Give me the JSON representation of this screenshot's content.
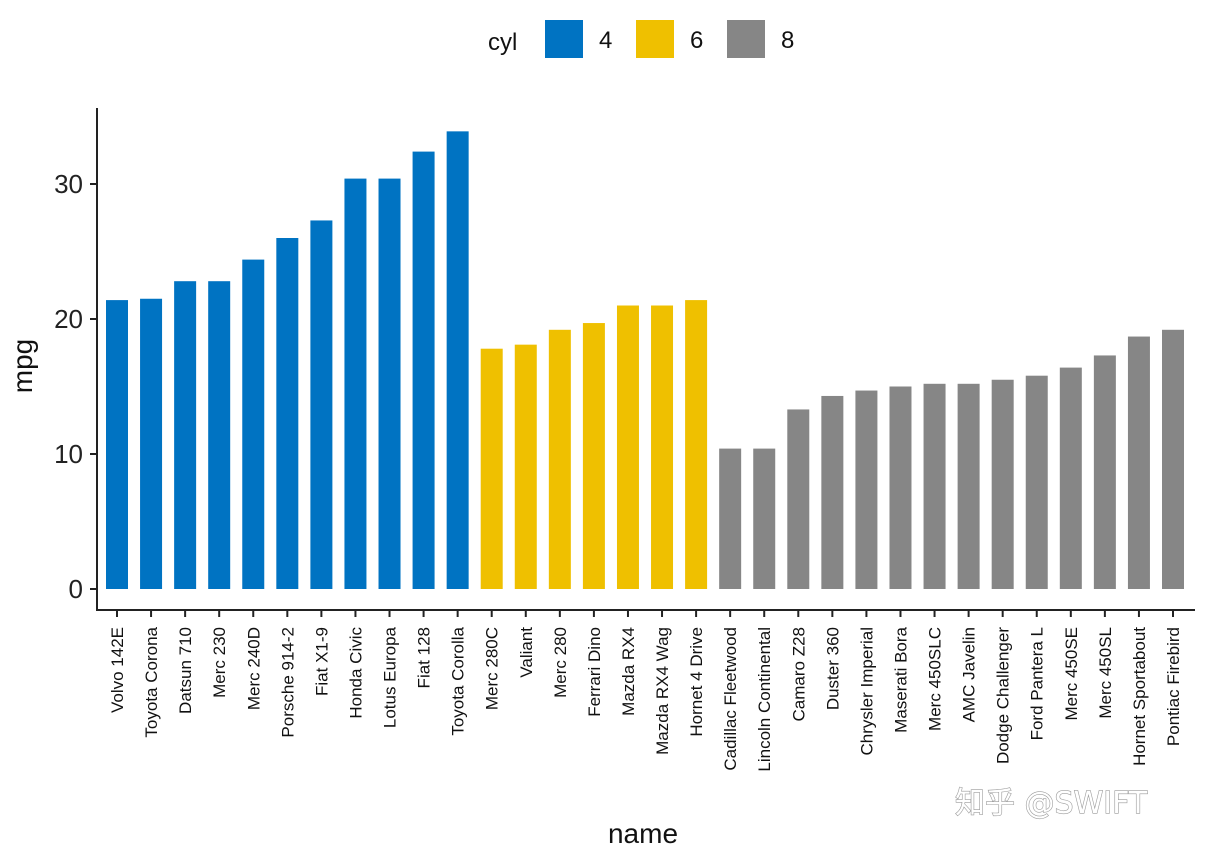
{
  "chart_data": {
    "type": "bar",
    "xlabel": "name",
    "ylabel": "mpg",
    "ylim": [
      0,
      35
    ],
    "yticks": [
      0,
      10,
      20,
      30
    ],
    "grid": false,
    "legend": {
      "title": "cyl",
      "position": "top",
      "entries": [
        {
          "label": "4",
          "color": "#0073C2"
        },
        {
          "label": "6",
          "color": "#EFC000"
        },
        {
          "label": "8",
          "color": "#868686"
        }
      ]
    },
    "categories": [
      "Volvo 142E",
      "Toyota Corona",
      "Datsun 710",
      "Merc 230",
      "Merc 240D",
      "Porsche 914-2",
      "Fiat X1-9",
      "Honda Civic",
      "Lotus Europa",
      "Fiat 128",
      "Toyota Corolla",
      "Merc 280C",
      "Valiant",
      "Merc 280",
      "Ferrari Dino",
      "Mazda RX4",
      "Mazda RX4 Wag",
      "Hornet 4 Drive",
      "Cadillac Fleetwood",
      "Lincoln Continental",
      "Camaro Z28",
      "Duster 360",
      "Chrysler Imperial",
      "Maserati Bora",
      "Merc 450SLC",
      "AMC Javelin",
      "Dodge Challenger",
      "Ford Pantera L",
      "Merc 450SE",
      "Merc 450SL",
      "Hornet Sportabout",
      "Pontiac Firebird"
    ],
    "values": [
      21.4,
      21.5,
      22.8,
      22.8,
      24.4,
      26.0,
      27.3,
      30.4,
      30.4,
      32.4,
      33.9,
      17.8,
      18.1,
      19.2,
      19.7,
      21.0,
      21.0,
      21.4,
      10.4,
      10.4,
      13.3,
      14.3,
      14.7,
      15.0,
      15.2,
      15.2,
      15.5,
      15.8,
      16.4,
      17.3,
      18.7,
      19.2
    ],
    "groups": [
      "4",
      "4",
      "4",
      "4",
      "4",
      "4",
      "4",
      "4",
      "4",
      "4",
      "4",
      "6",
      "6",
      "6",
      "6",
      "6",
      "6",
      "6",
      "8",
      "8",
      "8",
      "8",
      "8",
      "8",
      "8",
      "8",
      "8",
      "8",
      "8",
      "8",
      "8",
      "8"
    ]
  },
  "watermark": "知乎 @SWIFT"
}
